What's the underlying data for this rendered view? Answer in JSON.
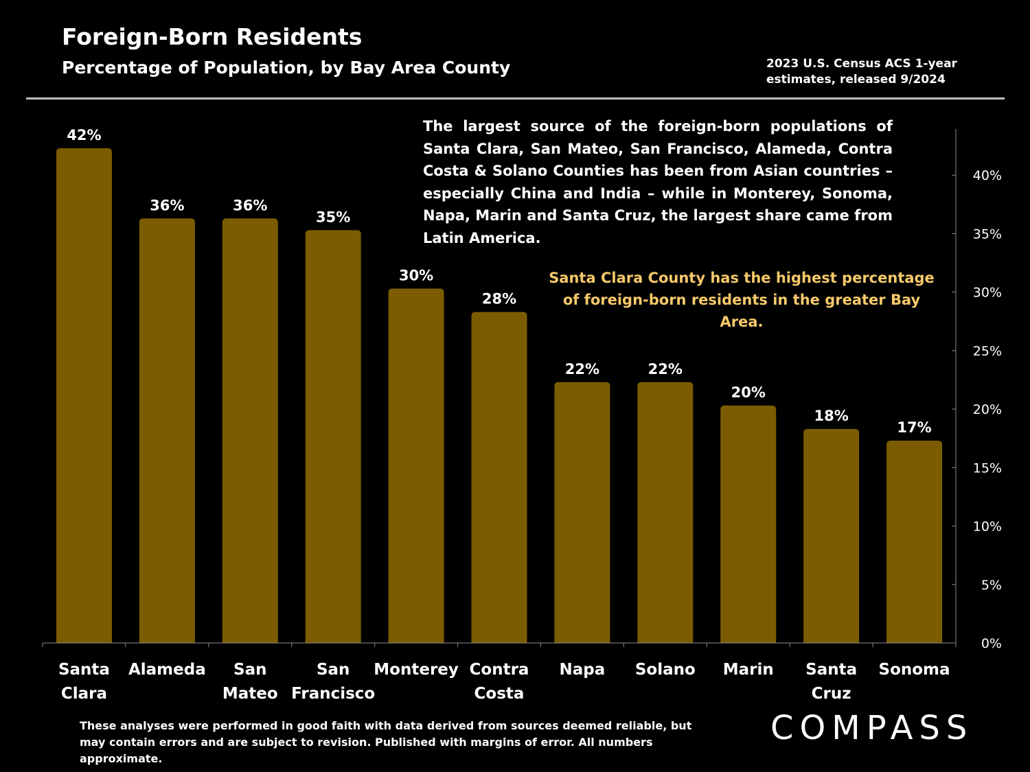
{
  "header": {
    "title": "Foreign-Born Residents",
    "subtitle": "Percentage of Population, by Bay Area County",
    "source": "2023 U.S. Census ACS 1-year estimates, released 9/2024"
  },
  "annotation": "The largest source of the foreign-born populations of Santa Clara, San Mateo, San Francisco, Alameda, Contra Costa & Solano Counties has been from Asian countries – especially China and India – while in Monterey, Sonoma, Napa, Marin and Santa Cruz, the largest share came from Latin America.",
  "highlight": "Santa Clara County has the highest percentage of foreign-born residents in the greater Bay Area.",
  "footer": {
    "disclaimer": "These analyses were performed in good faith with data derived from sources deemed reliable, but may contain errors and are subject to revision.  Published with margins of error. All numbers approximate.",
    "logo": "COMPASS"
  },
  "colors": {
    "bar": "#7b5c00",
    "highlight_text": "#f6c96a",
    "axis": "#8c8c8c",
    "background": "#000000"
  },
  "chart_data": {
    "type": "bar",
    "categories": [
      [
        "Santa",
        "Clara"
      ],
      [
        "Alameda"
      ],
      [
        "San",
        "Mateo"
      ],
      [
        "San",
        "Francisco"
      ],
      [
        "Monterey"
      ],
      [
        "Contra",
        "Costa"
      ],
      [
        "Napa"
      ],
      [
        "Solano"
      ],
      [
        "Marin"
      ],
      [
        "Santa",
        "Cruz"
      ],
      [
        "Sonoma"
      ]
    ],
    "values": [
      42.3,
      36.3,
      36.3,
      35.3,
      30.3,
      28.3,
      22.3,
      22.3,
      20.3,
      18.3,
      17.3
    ],
    "data_labels": [
      "42%",
      "36%",
      "36%",
      "35%",
      "30%",
      "28%",
      "22%",
      "22%",
      "20%",
      "18%",
      "17%"
    ],
    "y_ticks": [
      0,
      5,
      10,
      15,
      20,
      25,
      30,
      35,
      40
    ],
    "y_tick_labels": [
      "0%",
      "5%",
      "10%",
      "15%",
      "20%",
      "25%",
      "30%",
      "35%",
      "40%"
    ],
    "ylim": [
      0,
      45
    ],
    "y_axis_side": "right",
    "grid": false
  }
}
